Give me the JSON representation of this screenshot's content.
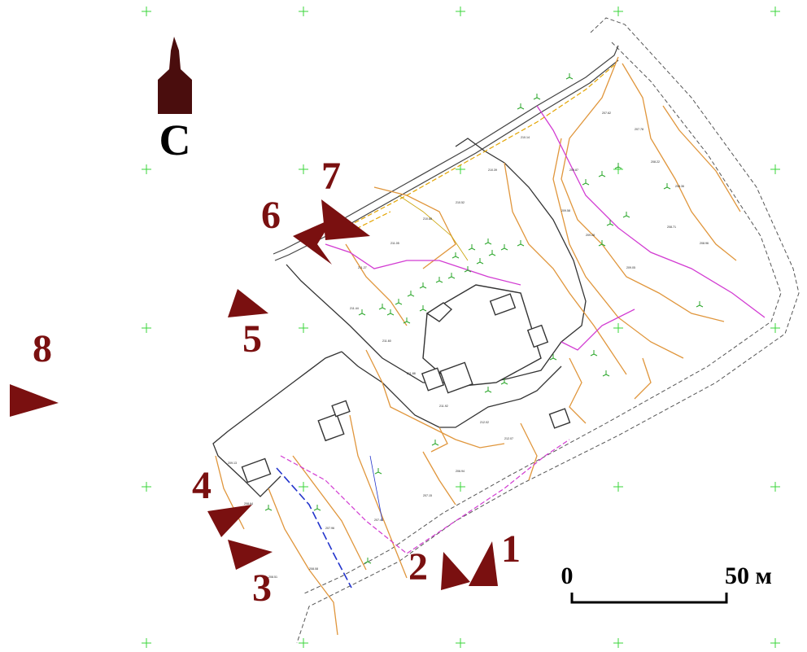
{
  "north": {
    "label": "С",
    "icon": "north-arrow-icon"
  },
  "scale_bar": {
    "start_label": "0",
    "end_label": "50 м"
  },
  "viewpoints": [
    {
      "id": "vp1",
      "label": "1"
    },
    {
      "id": "vp2",
      "label": "2"
    },
    {
      "id": "vp3",
      "label": "3"
    },
    {
      "id": "vp4",
      "label": "4"
    },
    {
      "id": "vp5",
      "label": "5"
    },
    {
      "id": "vp6",
      "label": "6"
    },
    {
      "id": "vp7",
      "label": "7"
    },
    {
      "id": "vp8",
      "label": "8"
    }
  ],
  "colors": {
    "viewpoint": "#7a1010",
    "grid": "#3ad63a",
    "contour": "#e0963c",
    "magenta_line": "#d23cd2",
    "tree": "#2aa62a",
    "water_line": "#2233cc"
  },
  "elevations": [
    "207.62",
    "207.78",
    "208.22",
    "208.36",
    "208.71",
    "208.96",
    "209.05",
    "209.28",
    "209.58",
    "209.87",
    "210.14",
    "210.39",
    "210.52",
    "210.88",
    "211.05",
    "211.27",
    "211.44",
    "211.60",
    "211.88",
    "211.92",
    "212.02",
    "212.07",
    "206.94",
    "207.15",
    "207.44",
    "207.96",
    "208.08",
    "208.51",
    "208.64",
    "209.13"
  ]
}
